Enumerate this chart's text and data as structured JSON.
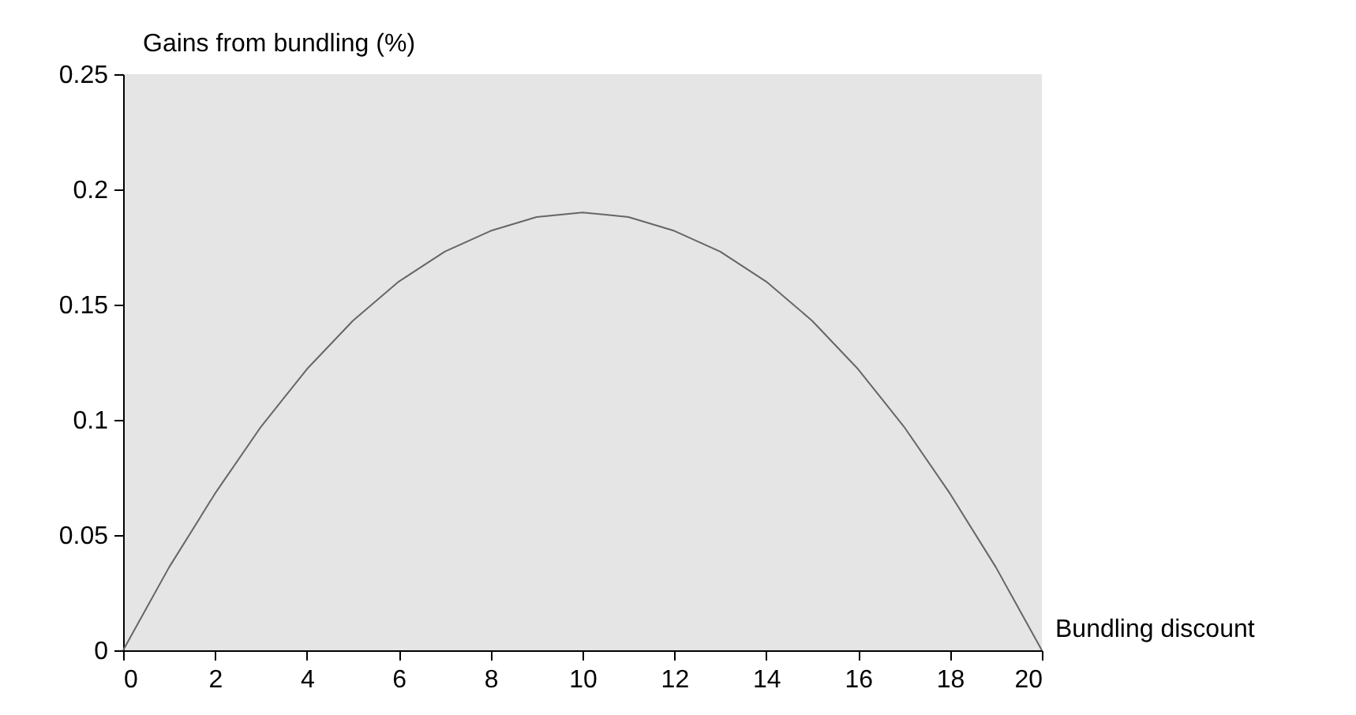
{
  "chart_data": {
    "type": "line",
    "xlabel": "Bundling discount",
    "ylabel": "Gains from bundling (%)",
    "x": [
      0,
      1,
      2,
      3,
      4,
      5,
      6,
      7,
      8,
      9,
      10,
      11,
      12,
      13,
      14,
      15,
      16,
      17,
      18,
      19,
      20
    ],
    "series": [
      {
        "color": "#666666",
        "values": [
          0,
          0.036,
          0.068,
          0.097,
          0.122,
          0.143,
          0.16,
          0.173,
          0.182,
          0.188,
          0.19,
          0.188,
          0.182,
          0.173,
          0.16,
          0.143,
          0.122,
          0.097,
          0.068,
          0.036,
          0
        ]
      }
    ],
    "xlim": [
      0,
      20
    ],
    "ylim": [
      0,
      0.25
    ],
    "xticks": [
      0,
      2,
      4,
      6,
      8,
      10,
      12,
      14,
      16,
      18,
      20
    ],
    "yticks": [
      0,
      0.05,
      0.1,
      0.15,
      0.2,
      0.25
    ],
    "grid": false,
    "marker": "none",
    "line_style": "solid"
  }
}
